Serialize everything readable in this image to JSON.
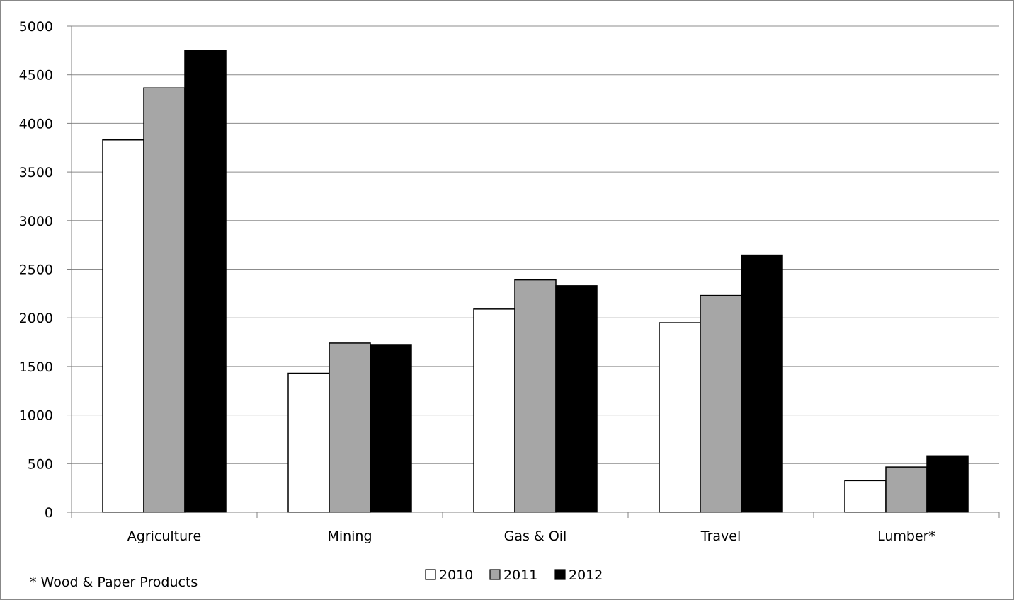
{
  "chart_data": {
    "type": "bar",
    "categories": [
      "Agriculture",
      "Mining",
      "Gas & Oil",
      "Travel",
      "Lumber*"
    ],
    "series": [
      {
        "name": "2010",
        "values": [
          3830,
          1430,
          2090,
          1950,
          325
        ],
        "color": "#ffffff"
      },
      {
        "name": "2011",
        "values": [
          4365,
          1740,
          2390,
          2230,
          465
        ],
        "color": "#a6a6a6"
      },
      {
        "name": "2012",
        "values": [
          4750,
          1725,
          2330,
          2645,
          580
        ],
        "color": "#000000"
      }
    ],
    "ylim": [
      0,
      5000
    ],
    "yticks": [
      0,
      500,
      1000,
      1500,
      2000,
      2500,
      3000,
      3500,
      4000,
      4500,
      5000
    ],
    "grid": true,
    "legend_position": "bottom",
    "title": "",
    "xlabel": "",
    "ylabel": "",
    "footnote": "* Wood & Paper Products"
  }
}
